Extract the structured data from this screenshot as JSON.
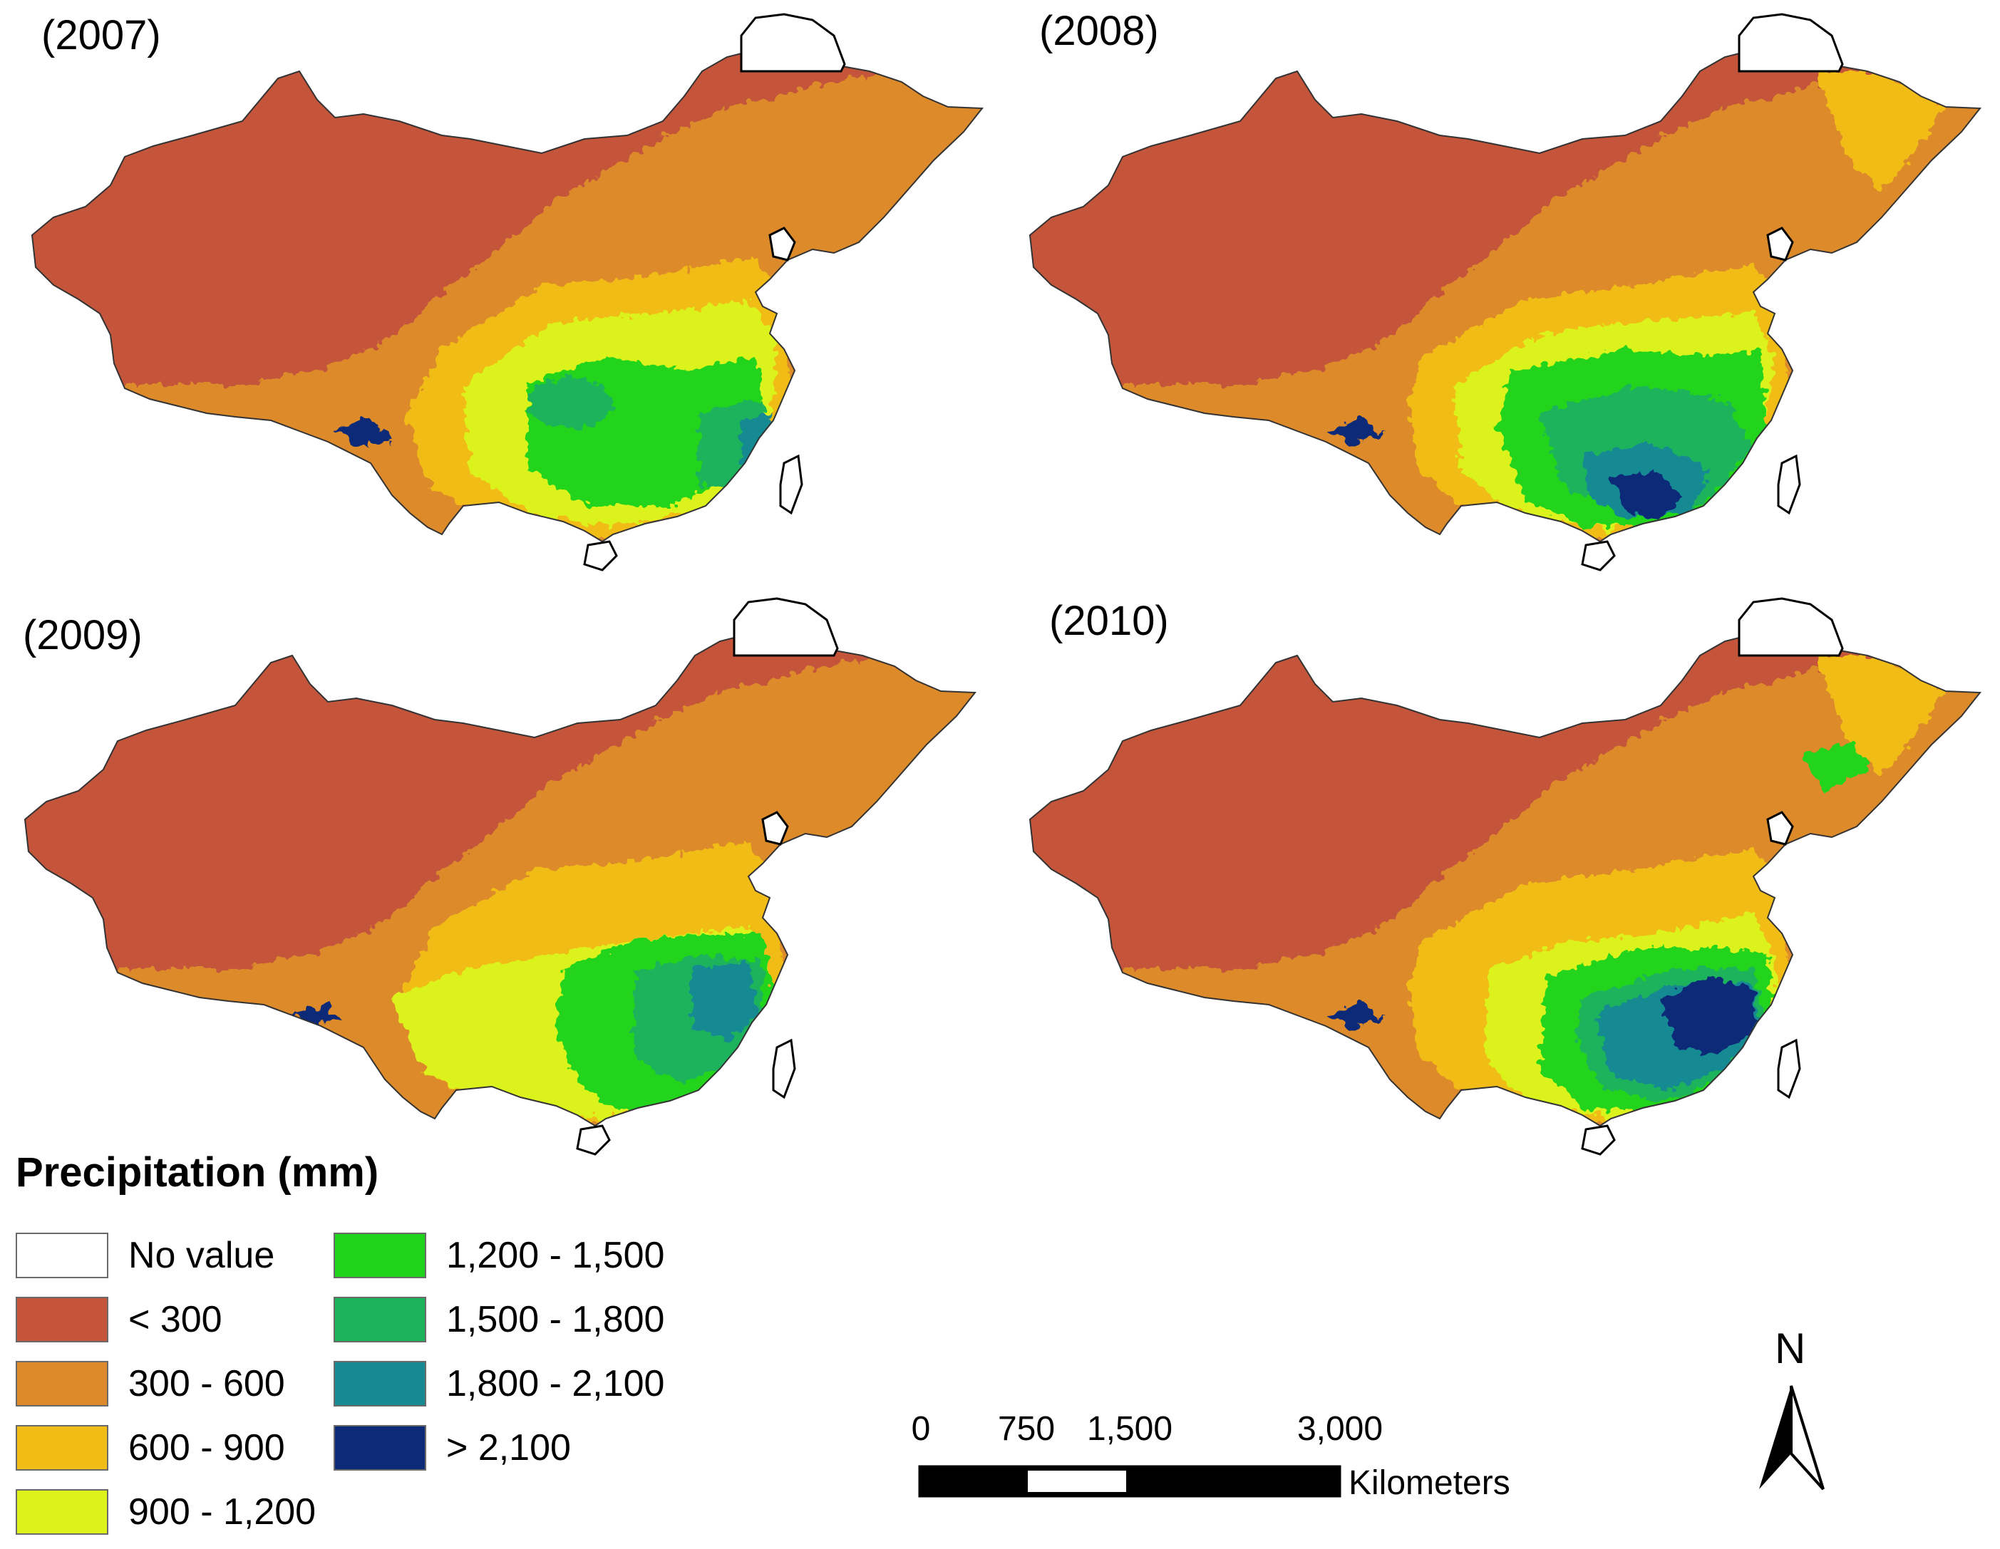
{
  "panels": [
    {
      "year_label": "(2007)",
      "pattern": "p2007"
    },
    {
      "year_label": "(2008)",
      "pattern": "p2008"
    },
    {
      "year_label": "(2009)",
      "pattern": "p2009"
    },
    {
      "year_label": "(2010)",
      "pattern": "p2010"
    }
  ],
  "legend": {
    "title": "Precipitation (mm)",
    "classes": [
      {
        "label": "No value",
        "color": "#ffffff"
      },
      {
        "label": "< 300",
        "color": "#c4553b"
      },
      {
        "label": "300 - 600",
        "color": "#dc8a2c"
      },
      {
        "label": "600 - 900",
        "color": "#f1bc16"
      },
      {
        "label": "900 - 1,200",
        "color": "#dcf21a"
      },
      {
        "label": "1,200 - 1,500",
        "color": "#20d41d"
      },
      {
        "label": "1,500 - 1,800",
        "color": "#1ab35c"
      },
      {
        "label": "1,800 - 2,100",
        "color": "#168a92"
      },
      {
        "label": "> 2,100",
        "color": "#0d2a78"
      }
    ]
  },
  "scale_bar": {
    "ticks": [
      "0",
      "750",
      "1,500",
      "3,000"
    ],
    "units": "Kilometers"
  },
  "north_arrow": {
    "label": "N"
  }
}
